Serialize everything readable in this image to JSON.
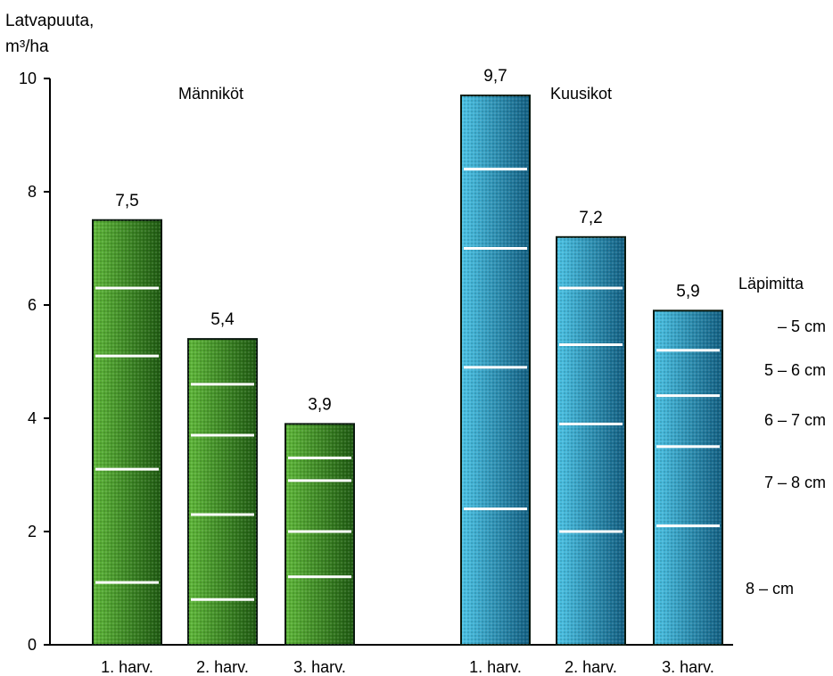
{
  "chart_data": {
    "type": "bar",
    "y_axis_label_line1": "Latvapuuta,",
    "y_axis_label_line2": "m³/ha",
    "ylim": [
      0,
      10
    ],
    "y_ticks": [
      "0",
      "2",
      "4",
      "6",
      "8",
      "10"
    ],
    "legend_title": "Läpimitta",
    "legend_items": [
      "– 5 cm",
      "5 – 6 cm",
      "6 – 7 cm",
      "7 – 8 cm",
      "8 – cm"
    ],
    "colors": {
      "pine_light": "#5fb83a",
      "pine_dark": "#1f5a12",
      "spruce_light": "#4cc4e6",
      "spruce_dark": "#135f82",
      "divider": "#ffffff",
      "axis": "#000000"
    },
    "groups": [
      {
        "name": "Männiköt",
        "color_key": "pine",
        "bars": [
          {
            "category": "1. harv.",
            "value": 7.5,
            "value_label": "7,5",
            "segment_boundaries": [
              1.1,
              3.1,
              5.1,
              6.3
            ]
          },
          {
            "category": "2. harv.",
            "value": 5.4,
            "value_label": "5,4",
            "segment_boundaries": [
              0.8,
              2.3,
              3.7,
              4.6
            ]
          },
          {
            "category": "3. harv.",
            "value": 3.9,
            "value_label": "3,9",
            "segment_boundaries": [
              1.2,
              2.0,
              2.9,
              3.3
            ]
          }
        ]
      },
      {
        "name": "Kuusikot",
        "color_key": "spruce",
        "bars": [
          {
            "category": "1. harv.",
            "value": 9.7,
            "value_label": "9,7",
            "segment_boundaries": [
              2.4,
              4.9,
              7.0,
              8.4
            ]
          },
          {
            "category": "2. harv.",
            "value": 7.2,
            "value_label": "7,2",
            "segment_boundaries": [
              2.0,
              3.9,
              5.3,
              6.3
            ]
          },
          {
            "category": "3. harv.",
            "value": 5.9,
            "value_label": "5,9",
            "segment_boundaries": [
              2.1,
              3.5,
              4.4,
              5.2
            ]
          }
        ]
      }
    ]
  }
}
